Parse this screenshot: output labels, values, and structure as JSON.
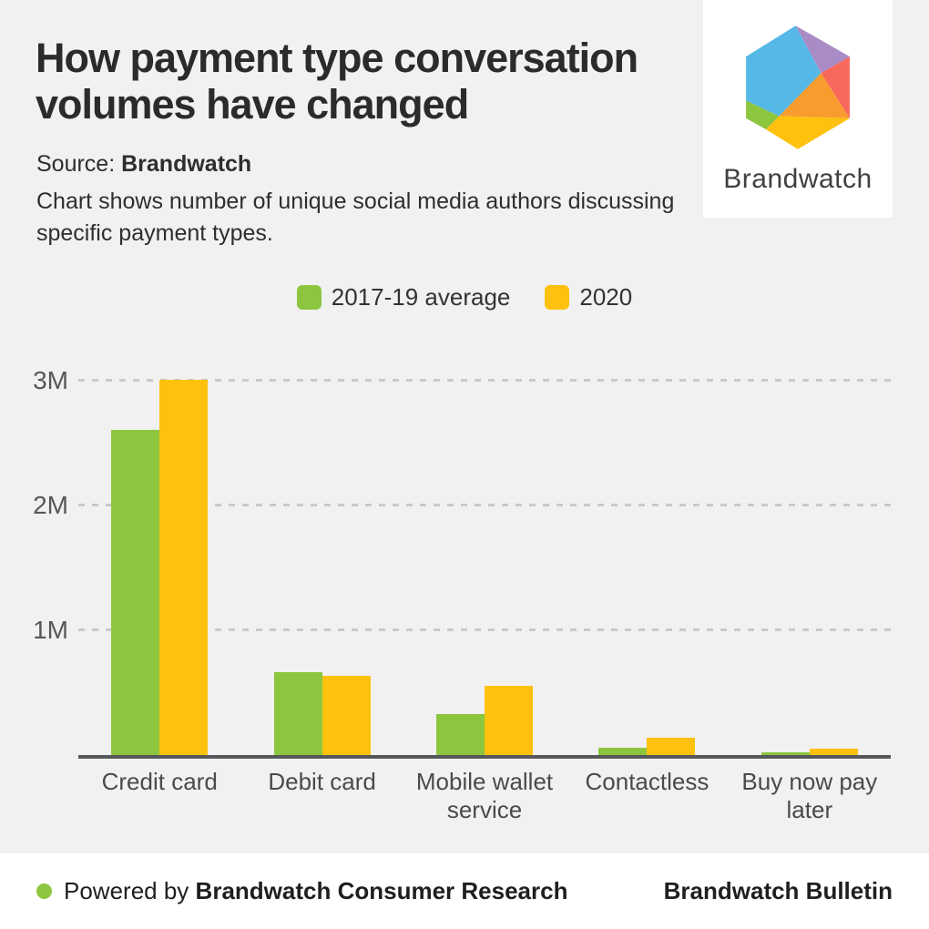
{
  "header": {
    "title_line1": "How payment type conversation",
    "title_line2": "volumes have changed",
    "source_label": "Source:",
    "source_value": "Brandwatch",
    "description_line1": "Chart shows number of unique social media authors discussing",
    "description_line2": "specific payment types."
  },
  "logo": {
    "wordmark": "Brandwatch",
    "facet_colors": {
      "blue": "#56B8E6",
      "purple": "#A98BC6",
      "coral": "#F9685D",
      "orange": "#F89C2E",
      "yellow": "#FDC10E",
      "green": "#8CC63F"
    }
  },
  "chart_data": {
    "type": "bar",
    "title": "How payment type conversation volumes have changed",
    "subtitle": "Chart shows number of unique social media authors discussing specific payment types.",
    "unit": "unique authors (millions)",
    "categories": [
      "Credit card",
      "Debit card",
      "Mobile wallet service",
      "Contactless",
      "Buy now pay later"
    ],
    "series": [
      {
        "name": "2017-19 average",
        "color": "#8CC63F",
        "values_millions": [
          2.6,
          0.66,
          0.33,
          0.06,
          0.02
        ]
      },
      {
        "name": "2020",
        "color": "#FDC10E",
        "values_millions": [
          3.0,
          0.63,
          0.55,
          0.14,
          0.05
        ]
      }
    ],
    "ylim_millions": [
      0,
      3
    ],
    "yticks": [
      "3M",
      "2M",
      "1M"
    ],
    "grid": "horizontal dashed",
    "legend_position": "top center",
    "colors": {
      "grid": "#C9C9C9",
      "axis": "#56575B",
      "background": "#F1F1F2"
    }
  },
  "footer": {
    "powered_prefix": "Powered by",
    "powered_brand": "Brandwatch Consumer Research",
    "right_text": "Brandwatch Bulletin"
  }
}
